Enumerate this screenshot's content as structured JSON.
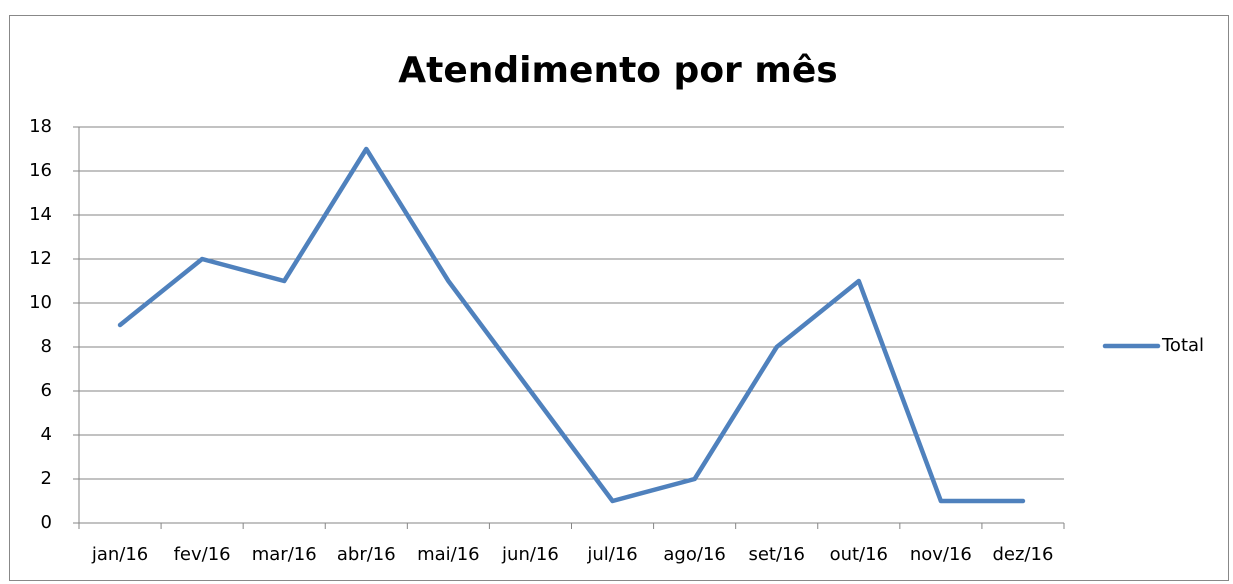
{
  "chart_data": {
    "type": "line",
    "title": "Atendimento por mês",
    "categories": [
      "jan/16",
      "fev/16",
      "mar/16",
      "abr/16",
      "mai/16",
      "jun/16",
      "jul/16",
      "ago/16",
      "set/16",
      "out/16",
      "nov/16",
      "dez/16"
    ],
    "series": [
      {
        "name": "Total",
        "color": "#4f81bd",
        "values": [
          9,
          12,
          11,
          17,
          11,
          6,
          1,
          2,
          8,
          11,
          1,
          1
        ]
      }
    ],
    "ylim": [
      0,
      18
    ],
    "yticks": [
      0,
      2,
      4,
      6,
      8,
      10,
      12,
      14,
      16,
      18
    ],
    "grid": true,
    "legend": "right"
  }
}
